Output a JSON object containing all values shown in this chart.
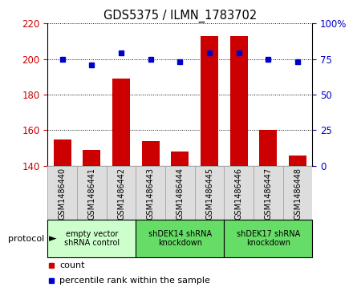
{
  "title": "GDS5375 / ILMN_1783702",
  "samples": [
    "GSM1486440",
    "GSM1486441",
    "GSM1486442",
    "GSM1486443",
    "GSM1486444",
    "GSM1486445",
    "GSM1486446",
    "GSM1486447",
    "GSM1486448"
  ],
  "counts": [
    155,
    149,
    189,
    154,
    148,
    213,
    213,
    160,
    146
  ],
  "percentile_ranks": [
    75,
    71,
    79,
    75,
    73,
    79,
    79,
    75,
    73
  ],
  "ylim_left": [
    140,
    220
  ],
  "ylim_right": [
    0,
    100
  ],
  "yticks_left": [
    140,
    160,
    180,
    200,
    220
  ],
  "yticks_right": [
    0,
    25,
    50,
    75,
    100
  ],
  "bar_color": "#cc0000",
  "dot_color": "#0000cc",
  "bar_width": 0.6,
  "groups": [
    {
      "label": "empty vector\nshRNA control",
      "start": 0,
      "end": 3,
      "color": "#ccffcc"
    },
    {
      "label": "shDEK14 shRNA\nknockdown",
      "start": 3,
      "end": 6,
      "color": "#66dd66"
    },
    {
      "label": "shDEK17 shRNA\nknockdown",
      "start": 6,
      "end": 9,
      "color": "#66dd66"
    }
  ],
  "protocol_label": "protocol",
  "legend_count_label": "count",
  "legend_pct_label": "percentile rank within the sample",
  "background_color": "#ffffff",
  "tick_label_color_left": "#cc0000",
  "tick_label_color_right": "#0000cc",
  "xtick_box_color": "#dddddd",
  "xtick_box_edge": "#aaaaaa"
}
